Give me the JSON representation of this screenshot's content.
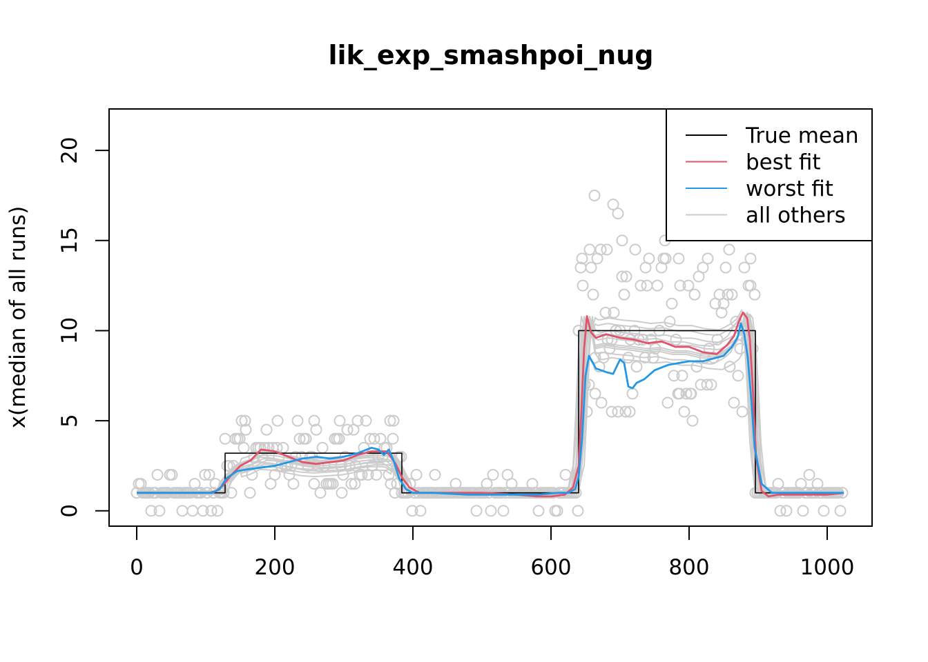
{
  "chart_data": {
    "type": "line",
    "title": "lik_exp_smashpoi_nug",
    "xlabel": "",
    "ylabel": "x(median of all runs)",
    "xlim": [
      -40,
      1065
    ],
    "ylim": [
      -0.85,
      22.3
    ],
    "xticks": [
      0,
      200,
      400,
      600,
      800,
      1000
    ],
    "yticks": [
      0,
      5,
      10,
      15,
      20
    ],
    "grid": false,
    "legend_position": "top-right",
    "colors": {
      "true_mean": "#000000",
      "best_fit": "#df536b",
      "worst_fit": "#2297e6",
      "all_others": "#cccccc"
    },
    "legend": [
      {
        "label": "True mean",
        "color": "#000000"
      },
      {
        "label": "best fit",
        "color": "#df536b"
      },
      {
        "label": "worst fit",
        "color": "#2297e6"
      },
      {
        "label": "all others",
        "color": "#cccccc"
      }
    ],
    "series": [
      {
        "name": "True mean",
        "color": "#000000",
        "step": true,
        "x": [
          0,
          128,
          128,
          384,
          384,
          640,
          640,
          896,
          896,
          1024
        ],
        "y": [
          1,
          1,
          3.2,
          3.2,
          1,
          1,
          10,
          10,
          1,
          1
        ]
      },
      {
        "name": "best fit",
        "color": "#df536b",
        "x": [
          0,
          40,
          80,
          105,
          115,
          125,
          135,
          150,
          165,
          180,
          200,
          220,
          240,
          260,
          280,
          300,
          320,
          340,
          355,
          362,
          368,
          375,
          385,
          395,
          410,
          450,
          500,
          550,
          580,
          600,
          620,
          632,
          640,
          644,
          648,
          652,
          658,
          665,
          680,
          700,
          720,
          740,
          760,
          780,
          800,
          820,
          840,
          855,
          865,
          872,
          878,
          884,
          888,
          892,
          897,
          905,
          915,
          930,
          960,
          1000,
          1024
        ],
        "y": [
          1.0,
          1.0,
          1.0,
          1.0,
          1.1,
          1.4,
          1.9,
          2.5,
          2.8,
          3.4,
          3.3,
          3.0,
          2.7,
          2.6,
          2.7,
          2.8,
          3.1,
          3.3,
          3.3,
          3.3,
          3.0,
          2.6,
          1.8,
          1.3,
          1.0,
          1.0,
          1.0,
          0.9,
          0.8,
          0.8,
          0.9,
          1.3,
          2.5,
          5.5,
          9.0,
          10.8,
          9.9,
          9.6,
          9.8,
          9.6,
          9.5,
          9.3,
          9.4,
          9.1,
          9.1,
          8.8,
          8.7,
          9.2,
          9.7,
          10.5,
          11.0,
          10.7,
          9.5,
          7.0,
          3.0,
          1.1,
          0.8,
          0.9,
          0.9,
          0.9,
          1.0
        ]
      },
      {
        "name": "worst fit",
        "color": "#2297e6",
        "x": [
          0,
          40,
          80,
          100,
          110,
          120,
          130,
          145,
          160,
          180,
          200,
          220,
          240,
          260,
          280,
          300,
          320,
          340,
          350,
          358,
          365,
          372,
          380,
          390,
          400,
          430,
          480,
          530,
          580,
          610,
          625,
          635,
          640,
          645,
          650,
          655,
          665,
          680,
          690,
          700,
          706,
          712,
          718,
          724,
          735,
          750,
          770,
          800,
          820,
          840,
          850,
          862,
          870,
          875,
          880,
          885,
          890,
          895,
          905,
          920,
          960,
          1000,
          1024
        ],
        "y": [
          1.0,
          1.0,
          1.0,
          1.0,
          1.0,
          1.2,
          1.8,
          2.2,
          2.3,
          2.4,
          2.5,
          2.7,
          2.9,
          3.0,
          2.9,
          3.0,
          3.2,
          3.5,
          3.4,
          3.1,
          3.4,
          2.8,
          1.8,
          1.2,
          1.0,
          1.0,
          0.9,
          0.9,
          0.9,
          1.0,
          1.0,
          1.2,
          1.9,
          4.0,
          7.5,
          8.6,
          7.9,
          7.7,
          7.6,
          8.4,
          8.2,
          6.9,
          6.8,
          7.1,
          7.3,
          7.8,
          8.1,
          8.3,
          8.3,
          8.5,
          8.6,
          9.1,
          9.6,
          10.4,
          9.8,
          8.5,
          6.2,
          3.5,
          1.5,
          1.0,
          1.0,
          1.0,
          1.0
        ]
      }
    ],
    "other_fits": [
      {
        "dx": 3,
        "low": 1.05,
        "mid": 2.7,
        "high": 9.3
      },
      {
        "dx": -3,
        "low": 0.95,
        "mid": 2.3,
        "high": 8.9
      },
      {
        "dx": 6,
        "low": 1.1,
        "mid": 3.0,
        "high": 9.7
      },
      {
        "dx": -6,
        "low": 1.0,
        "mid": 2.5,
        "high": 8.5
      },
      {
        "dx": 2,
        "low": 1.0,
        "mid": 2.9,
        "high": 10.1
      },
      {
        "dx": -2,
        "low": 0.9,
        "mid": 2.1,
        "high": 9.0
      },
      {
        "dx": 8,
        "low": 1.05,
        "mid": 2.6,
        "high": 8.2
      },
      {
        "dx": -8,
        "low": 1.0,
        "mid": 2.8,
        "high": 9.5
      },
      {
        "dx": 4,
        "low": 0.95,
        "mid": 2.4,
        "high": 10.4
      },
      {
        "dx": -4,
        "low": 1.0,
        "mid": 3.1,
        "high": 8.8
      }
    ],
    "observations": {
      "segments": [
        {
          "from": 0,
          "to": 127,
          "base": 1,
          "spread": 0.9
        },
        {
          "from": 128,
          "to": 383,
          "base": 3.0,
          "spread": 1.9
        },
        {
          "from": 384,
          "to": 639,
          "base": 1,
          "spread": 0.9
        },
        {
          "from": 640,
          "to": 895,
          "base": 9.6,
          "spread": 4.5
        },
        {
          "from": 896,
          "to": 1024,
          "base": 1,
          "spread": 0.9
        }
      ],
      "outliers": [
        {
          "x": 663,
          "y": 17.5
        },
        {
          "x": 690,
          "y": 17.0
        },
        {
          "x": 697,
          "y": 16.5
        },
        {
          "x": 703,
          "y": 15.0
        },
        {
          "x": 765,
          "y": 15.0
        },
        {
          "x": 645,
          "y": 14.0
        },
        {
          "x": 656,
          "y": 14.5
        },
        {
          "x": 672,
          "y": 14.5
        },
        {
          "x": 681,
          "y": 14.5
        },
        {
          "x": 722,
          "y": 14.5
        },
        {
          "x": 858,
          "y": 14.5
        },
        {
          "x": 889,
          "y": 14.0
        },
        {
          "x": 737,
          "y": 13.5
        },
        {
          "x": 785,
          "y": 14.0
        },
        {
          "x": 827,
          "y": 14.0
        },
        {
          "x": 664,
          "y": 6.5
        },
        {
          "x": 688,
          "y": 5.5
        },
        {
          "x": 708,
          "y": 5.5
        },
        {
          "x": 714,
          "y": 5.5
        },
        {
          "x": 786,
          "y": 6.5
        },
        {
          "x": 803,
          "y": 6.5
        },
        {
          "x": 157,
          "y": 5.0
        },
        {
          "x": 204,
          "y": 5.0
        },
        {
          "x": 257,
          "y": 5.0
        },
        {
          "x": 294,
          "y": 5.0
        },
        {
          "x": 367,
          "y": 5.0
        },
        {
          "x": 372,
          "y": 5.0
        },
        {
          "x": 297,
          "y": 1.0
        },
        {
          "x": 316,
          "y": 1.5
        }
      ]
    }
  }
}
